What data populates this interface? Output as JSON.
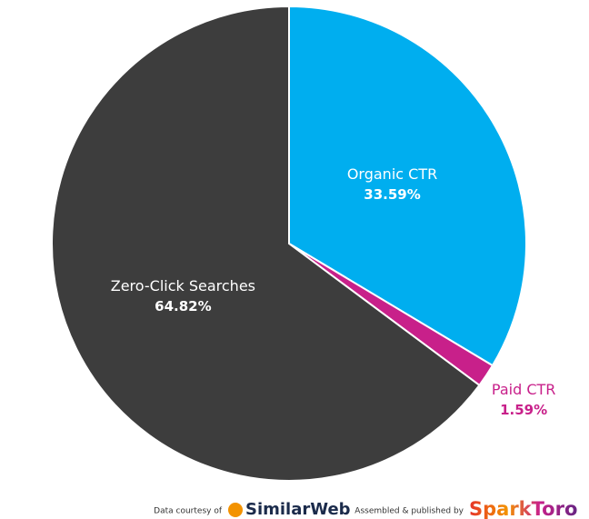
{
  "chart_data": {
    "type": "pie",
    "categories": [
      "Organic CTR",
      "Paid CTR",
      "Zero-Click Searches"
    ],
    "values": [
      33.59,
      1.59,
      64.82
    ],
    "value_labels": [
      "33.59%",
      "1.59%",
      "64.82%"
    ],
    "colors": [
      "#00aeef",
      "#c8208a",
      "#3d3d3d"
    ],
    "annotations": [
      "Data courtesy of",
      "SimilarWeb",
      "Assembled & published by",
      "SparkToro"
    ]
  }
}
